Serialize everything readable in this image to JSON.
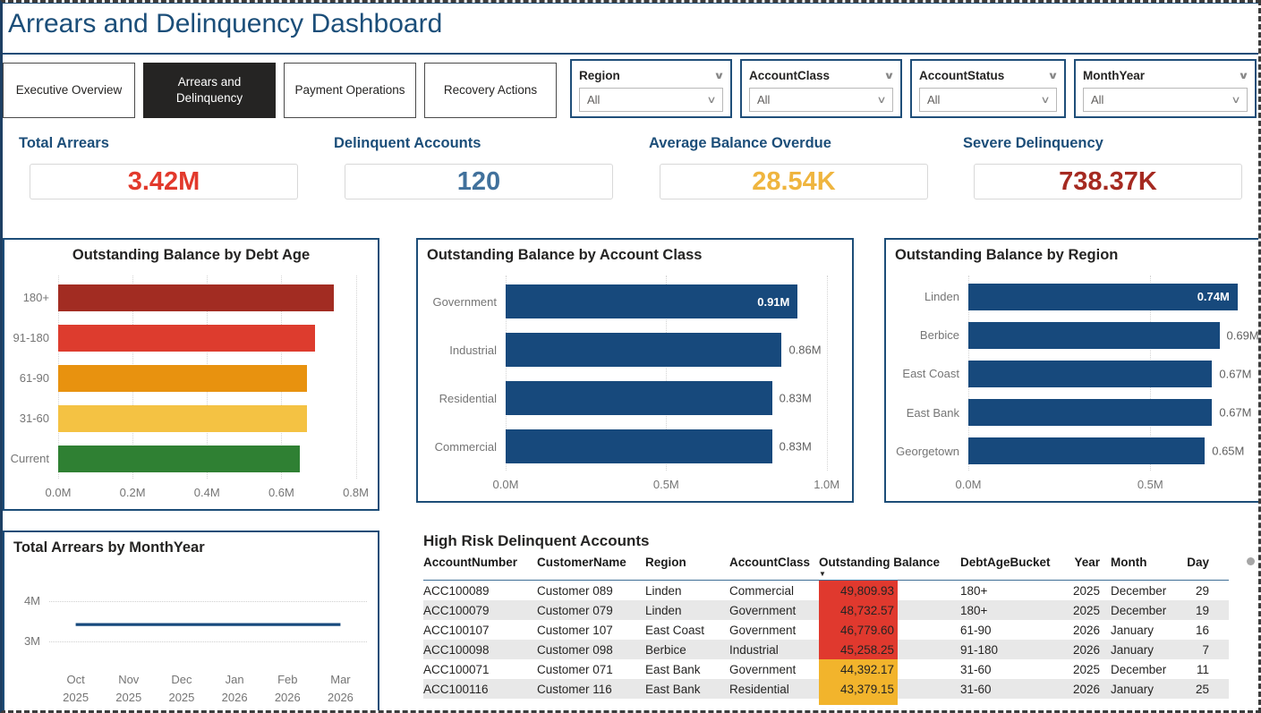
{
  "title": "Arrears and Delinquency Dashboard",
  "tabs": [
    {
      "label": "Executive Overview",
      "active": false
    },
    {
      "label": "Arrears and Delinquency",
      "active": true
    },
    {
      "label": "Payment Operations",
      "active": false
    },
    {
      "label": "Recovery Actions",
      "active": false
    }
  ],
  "slicers": [
    {
      "name": "Region",
      "value": "All"
    },
    {
      "name": "AccountClass",
      "value": "All"
    },
    {
      "name": "AccountStatus",
      "value": "All"
    },
    {
      "name": "MonthYear",
      "value": "All"
    }
  ],
  "kpis": [
    {
      "label": "Total Arrears",
      "value": "3.42M",
      "color": "#e2392c"
    },
    {
      "label": "Delinquent Accounts",
      "value": "120",
      "color": "#41719c"
    },
    {
      "label": "Average Balance Overdue",
      "value": "28.54K",
      "color": "#efb53f"
    },
    {
      "label": "Severe Delinquency",
      "value": "738.37K",
      "color": "#a52a21"
    }
  ],
  "chart_data": [
    {
      "type": "bar",
      "orientation": "horizontal",
      "title": "Outstanding Balance by Debt Age",
      "categories": [
        "180+",
        "91-180",
        "61-90",
        "31-60",
        "Current"
      ],
      "values": [
        0.74,
        0.69,
        0.67,
        0.67,
        0.65
      ],
      "unit": "M",
      "bar_colors": [
        "#a22c22",
        "#dd3c2e",
        "#e8920f",
        "#f4c243",
        "#2f8033"
      ],
      "xticks": [
        0.0,
        0.2,
        0.4,
        0.6,
        0.8
      ],
      "xtick_labels": [
        "0.0M",
        "0.2M",
        "0.4M",
        "0.6M",
        "0.8M"
      ],
      "xlim": [
        0,
        0.83
      ],
      "data_labels": false,
      "grid": true,
      "legend": "none"
    },
    {
      "type": "bar",
      "orientation": "horizontal",
      "title": "Outstanding Balance by Account Class",
      "categories": [
        "Government",
        "Industrial",
        "Residential",
        "Commercial"
      ],
      "values": [
        0.91,
        0.86,
        0.83,
        0.83
      ],
      "value_labels": [
        "0.91M",
        "0.86M",
        "0.83M",
        "0.83M"
      ],
      "unit": "M",
      "bar_color": "#17497c",
      "xticks": [
        0.0,
        0.5,
        1.0
      ],
      "xtick_labels": [
        "0.0M",
        "0.5M",
        "1.0M"
      ],
      "xlim": [
        0,
        1.04
      ],
      "data_labels": true,
      "max_label_inside": true,
      "grid": true,
      "legend": "none"
    },
    {
      "type": "bar",
      "orientation": "horizontal",
      "title": "Outstanding Balance by Region",
      "categories": [
        "Linden",
        "Berbice",
        "East Coast",
        "East Bank",
        "Georgetown"
      ],
      "values": [
        0.74,
        0.69,
        0.67,
        0.67,
        0.65
      ],
      "value_labels": [
        "0.74M",
        "0.69M",
        "0.67M",
        "0.67M",
        "0.65M"
      ],
      "unit": "M",
      "bar_color": "#17497c",
      "xticks": [
        0.0,
        0.5
      ],
      "xtick_labels": [
        "0.0M",
        "0.5M"
      ],
      "xlim": [
        0,
        0.765
      ],
      "data_labels": true,
      "max_label_inside": true,
      "grid": true,
      "legend": "none"
    },
    {
      "type": "line",
      "title": "Total Arrears by MonthYear",
      "x_labels_line1": [
        "Oct",
        "Nov",
        "Dec",
        "Jan",
        "Feb",
        "Mar"
      ],
      "x_labels_line2": [
        "2025",
        "2025",
        "2025",
        "2026",
        "2026",
        "2026"
      ],
      "values": [
        3.42,
        3.42,
        3.42,
        3.42,
        3.42,
        3.42
      ],
      "unit": "M",
      "yticks": [
        4,
        3
      ],
      "ytick_labels": [
        "4M",
        "3M"
      ],
      "ylim": [
        2.45,
        4.55
      ],
      "line_color": "#17497c",
      "grid": true,
      "legend": "none"
    }
  ],
  "table": {
    "title": "High Risk Delinquent Accounts",
    "columns": [
      "AccountNumber",
      "CustomerName",
      "Region",
      "AccountClass",
      "Outstanding Balance",
      "DebtAgeBucket",
      "Year",
      "Month",
      "Day"
    ],
    "sort_column": "Outstanding Balance",
    "sort_icon": "▼",
    "rows": [
      {
        "account_number": "ACC100089",
        "customer_name": "Customer 089",
        "region": "Linden",
        "account_class": "Commercial",
        "outstanding_balance": "49,809.93",
        "balance_color": "#e0392e",
        "debt_age_bucket": "180+",
        "year": "2025",
        "month": "December",
        "day": "29"
      },
      {
        "account_number": "ACC100079",
        "customer_name": "Customer 079",
        "region": "Linden",
        "account_class": "Government",
        "outstanding_balance": "48,732.57",
        "balance_color": "#e0392e",
        "debt_age_bucket": "180+",
        "year": "2025",
        "month": "December",
        "day": "19"
      },
      {
        "account_number": "ACC100107",
        "customer_name": "Customer 107",
        "region": "East Coast",
        "account_class": "Government",
        "outstanding_balance": "46,779.60",
        "balance_color": "#e0392e",
        "debt_age_bucket": "61-90",
        "year": "2026",
        "month": "January",
        "day": "16"
      },
      {
        "account_number": "ACC100098",
        "customer_name": "Customer 098",
        "region": "Berbice",
        "account_class": "Industrial",
        "outstanding_balance": "45,258.25",
        "balance_color": "#e0392e",
        "debt_age_bucket": "91-180",
        "year": "2026",
        "month": "January",
        "day": "7"
      },
      {
        "account_number": "ACC100071",
        "customer_name": "Customer 071",
        "region": "East Bank",
        "account_class": "Government",
        "outstanding_balance": "44,392.17",
        "balance_color": "#f2b42c",
        "debt_age_bucket": "31-60",
        "year": "2025",
        "month": "December",
        "day": "11"
      },
      {
        "account_number": "ACC100116",
        "customer_name": "Customer 116",
        "region": "East Bank",
        "account_class": "Residential",
        "outstanding_balance": "43,379.15",
        "balance_color": "#f2b42c",
        "debt_age_bucket": "31-60",
        "year": "2026",
        "month": "January",
        "day": "25"
      }
    ]
  }
}
